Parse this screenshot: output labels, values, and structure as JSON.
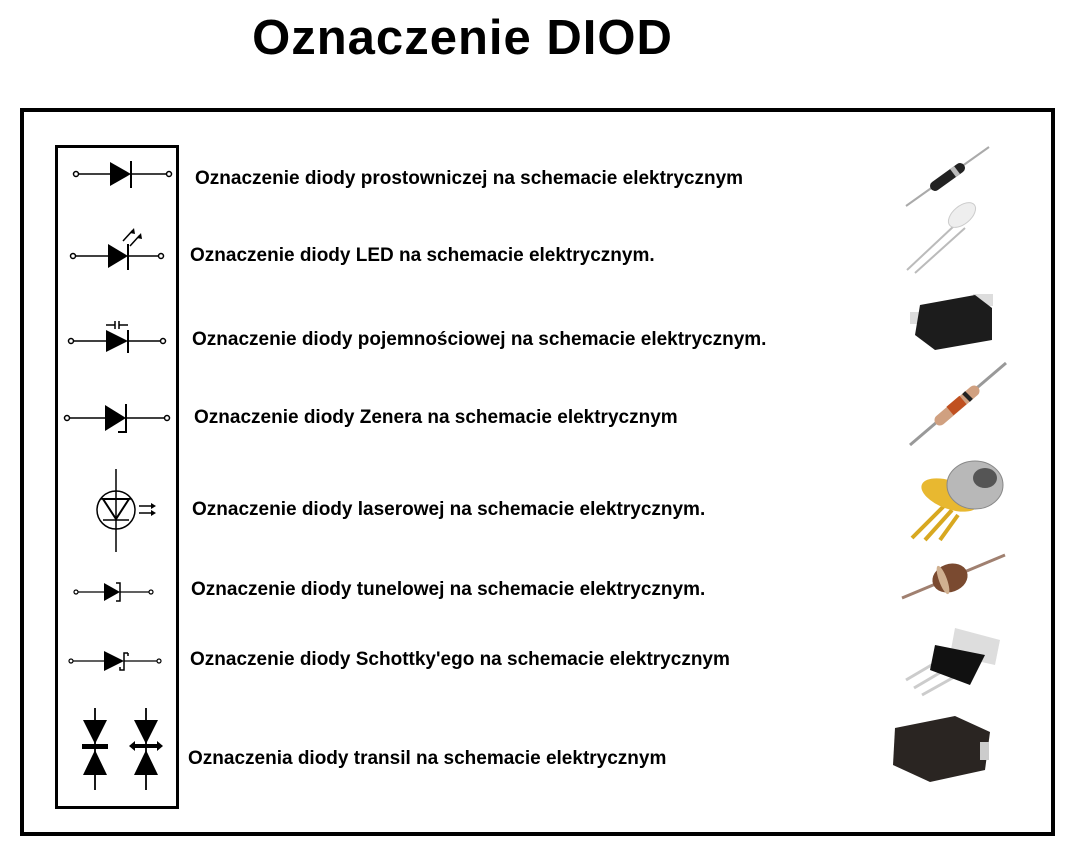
{
  "title": "Oznaczenie DIOD",
  "rows": [
    {
      "label": "Oznaczenie diody prostowniczej na schemacie elektrycznym",
      "symbol": "rectifier-diode-symbol",
      "photo": "rectifier-diode-photo"
    },
    {
      "label": "Oznaczenie diody LED na schemacie elektrycznym.",
      "symbol": "led-symbol",
      "photo": "led-photo"
    },
    {
      "label": "Oznaczenie diody pojemnościowej na schemacie elektrycznym.",
      "symbol": "varicap-diode-symbol",
      "photo": "varicap-diode-photo"
    },
    {
      "label": "Oznaczenie diody Zenera na schemacie elektrycznym",
      "symbol": "zener-diode-symbol",
      "photo": "zener-diode-photo"
    },
    {
      "label": "Oznaczenie diody laserowej na schemacie elektrycznym.",
      "symbol": "laser-diode-symbol",
      "photo": "laser-diode-photo"
    },
    {
      "label": "Oznaczenie diody tunelowej na schemacie elektrycznym.",
      "symbol": "tunnel-diode-symbol",
      "photo": "tunnel-diode-photo"
    },
    {
      "label": "Oznaczenie diody Schottky'ego na schemacie elektrycznym",
      "symbol": "schottky-diode-symbol",
      "photo": "schottky-diode-photo"
    },
    {
      "label": "Oznaczenia diody transil na schemacie elektrycznym",
      "symbol": "transil-diode-symbol",
      "photo": "transil-diode-photo"
    }
  ]
}
